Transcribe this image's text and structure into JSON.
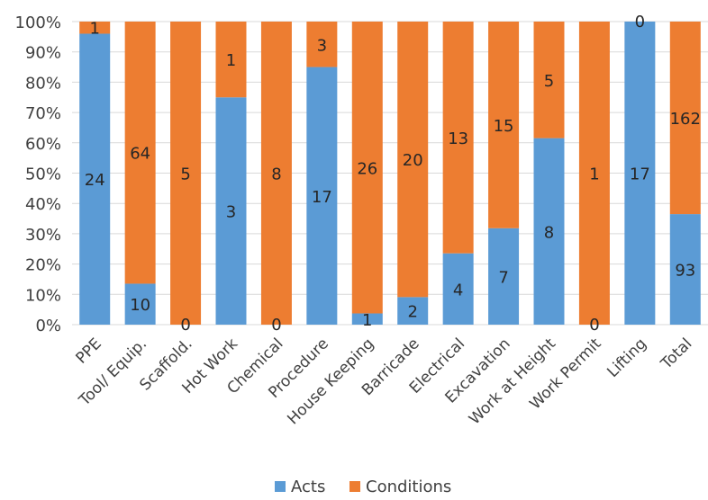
{
  "chart_data": {
    "type": "bar",
    "stacked": "percent",
    "categories": [
      "PPE",
      "Tool/ Equip.",
      "Scaffold.",
      "Hot Work",
      "Chemical",
      "Procedure",
      "House Keeping",
      "Barricade",
      "Electrical",
      "Excavation",
      "Work at Height",
      "Work Permit",
      "Lifting",
      "Total"
    ],
    "series": [
      {
        "name": "Acts",
        "color": "#5B9BD5",
        "values": [
          24,
          10,
          0,
          3,
          0,
          17,
          1,
          2,
          4,
          7,
          8,
          0,
          17,
          93
        ]
      },
      {
        "name": "Conditions",
        "color": "#ED7D31",
        "values": [
          1,
          64,
          5,
          1,
          8,
          3,
          26,
          20,
          13,
          15,
          5,
          1,
          0,
          162
        ]
      }
    ],
    "y_ticks": [
      "0%",
      "10%",
      "20%",
      "30%",
      "40%",
      "50%",
      "60%",
      "70%",
      "80%",
      "90%",
      "100%"
    ],
    "ylim": [
      0,
      100
    ],
    "grid": true,
    "legend_position": "bottom"
  }
}
